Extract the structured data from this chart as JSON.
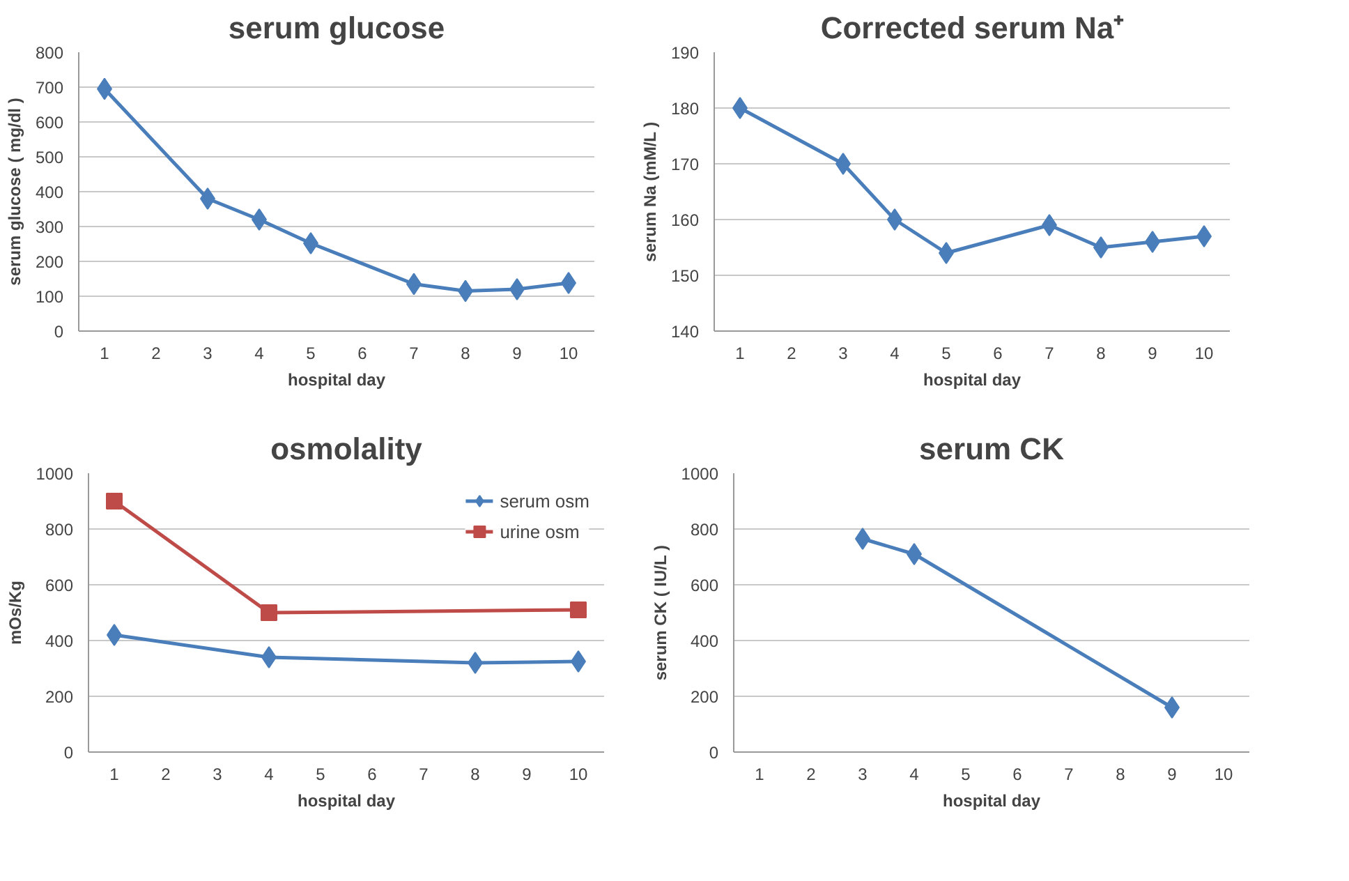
{
  "chart_data": [
    {
      "type": "line",
      "title": "serum glucose",
      "xlabel": "hospital day",
      "ylabel": "serum glucose ( mg/dl )",
      "xlim": [
        0.5,
        10.5
      ],
      "xticks": [
        1,
        2,
        3,
        4,
        5,
        6,
        7,
        8,
        9,
        10
      ],
      "ylim": [
        0,
        800
      ],
      "yticks": [
        0,
        100,
        200,
        300,
        400,
        500,
        600,
        700,
        800
      ],
      "grid": "y",
      "marker": "diamond",
      "legend": false,
      "series": [
        {
          "color": "#4a7ebb",
          "x": [
            1,
            3,
            4,
            5,
            7,
            8,
            9,
            10
          ],
          "values": [
            695,
            380,
            320,
            252,
            135,
            115,
            120,
            138
          ]
        }
      ]
    },
    {
      "type": "line",
      "title": "Corrected serum Na⁺",
      "xlabel": "hospital day",
      "ylabel": "serum Na (mM/L )",
      "xlim": [
        0.5,
        10.5
      ],
      "xticks": [
        1,
        2,
        3,
        4,
        5,
        6,
        7,
        8,
        9,
        10
      ],
      "ylim": [
        140,
        190
      ],
      "yticks": [
        140,
        150,
        160,
        170,
        180,
        190
      ],
      "grid": "y",
      "marker": "diamond",
      "legend": false,
      "series": [
        {
          "color": "#4a7ebb",
          "x": [
            1,
            3,
            4,
            5,
            7,
            8,
            9,
            10
          ],
          "values": [
            180,
            170,
            160,
            154,
            159,
            155,
            156,
            157
          ]
        }
      ]
    },
    {
      "type": "line",
      "title": "osmolality",
      "xlabel": "hospital day",
      "ylabel": "mOs/Kg",
      "xlim": [
        0.5,
        10.5
      ],
      "xticks": [
        1,
        2,
        3,
        4,
        5,
        6,
        7,
        8,
        9,
        10
      ],
      "ylim": [
        0,
        1000
      ],
      "yticks": [
        0,
        200,
        400,
        600,
        800,
        1000
      ],
      "grid": "y",
      "legend": "top right",
      "series": [
        {
          "name": "serum osm",
          "color": "#4a7ebb",
          "marker": "diamond",
          "x": [
            1,
            4,
            8,
            10
          ],
          "values": [
            420,
            340,
            320,
            325
          ]
        },
        {
          "name": "urine osm",
          "color": "#be4b48",
          "marker": "square",
          "x": [
            1,
            4,
            10
          ],
          "values": [
            900,
            500,
            510
          ]
        }
      ]
    },
    {
      "type": "line",
      "title": "serum CK",
      "xlabel": "hospital day",
      "ylabel": "serum CK ( IU/L )",
      "xlim": [
        0.5,
        10.5
      ],
      "xticks": [
        1,
        2,
        3,
        4,
        5,
        6,
        7,
        8,
        9,
        10
      ],
      "ylim": [
        0,
        1000
      ],
      "yticks": [
        0,
        200,
        400,
        600,
        800,
        1000
      ],
      "grid": "y",
      "marker": "diamond",
      "legend": false,
      "series": [
        {
          "color": "#4a7ebb",
          "x": [
            3,
            4,
            9
          ],
          "values": [
            765,
            710,
            160
          ]
        }
      ]
    }
  ]
}
